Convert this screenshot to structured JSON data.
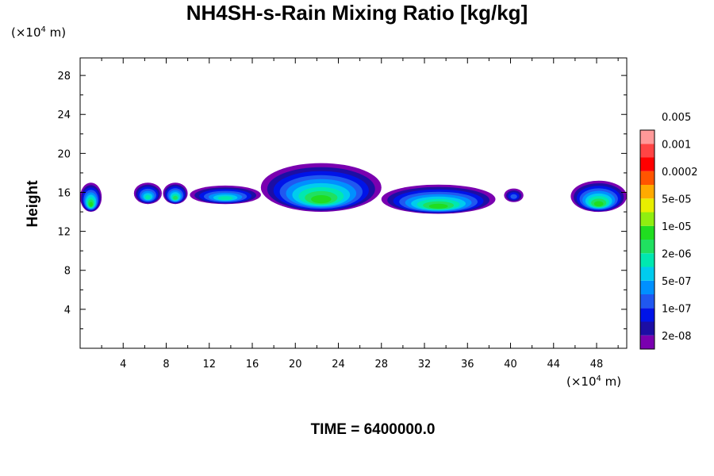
{
  "chart_data": {
    "type": "heatmap",
    "title": "NH4SH-s-Rain Mixing Ratio [kg/kg]",
    "xlabel": "",
    "ylabel": "Height",
    "x_unit_prefix": "(×10",
    "x_unit_exp": "4",
    "x_unit_suffix": " m)",
    "y_unit_prefix": "(×10",
    "y_unit_exp": "4",
    "y_unit_suffix": " m)",
    "xlim": [
      0,
      50.8
    ],
    "ylim": [
      0,
      29.8
    ],
    "xticks": [
      4,
      8,
      12,
      16,
      20,
      24,
      28,
      32,
      36,
      40,
      44,
      48
    ],
    "yticks": [
      4,
      8,
      12,
      16,
      20,
      24,
      28
    ],
    "x_minor_step": 2,
    "y_minor_step": 2,
    "colorbar": {
      "colors": [
        "#7a00b0",
        "#1c0ea4",
        "#0014e8",
        "#2058f0",
        "#0090ff",
        "#00ccee",
        "#00e8b0",
        "#20e060",
        "#20dd20",
        "#90ee10",
        "#e8ee00",
        "#ffaa00",
        "#ff5500",
        "#ff0000",
        "#ff4444",
        "#ff9999"
      ],
      "labels": [
        "2e-08",
        "1e-07",
        "5e-07",
        "2e-06",
        "1e-05",
        "5e-05",
        "0.0002",
        "0.001",
        "0.005"
      ]
    },
    "regions": [
      {
        "x": [
          0.0,
          2.0
        ],
        "y": [
          14.0,
          17.0
        ],
        "peak": 8
      },
      {
        "x": [
          5.0,
          7.6
        ],
        "y": [
          14.8,
          17.0
        ],
        "peak": 6
      },
      {
        "x": [
          7.7,
          10.0
        ],
        "y": [
          14.8,
          17.0
        ],
        "peak": 7
      },
      {
        "x": [
          10.2,
          16.8
        ],
        "y": [
          14.8,
          16.7
        ],
        "peak": 6
      },
      {
        "x": [
          16.8,
          28.0
        ],
        "y": [
          14.0,
          19.0
        ],
        "peak": 8
      },
      {
        "x": [
          28.0,
          38.6
        ],
        "y": [
          13.8,
          16.8
        ],
        "peak": 8
      },
      {
        "x": [
          39.4,
          41.2
        ],
        "y": [
          15.0,
          16.4
        ],
        "peak": 3
      },
      {
        "x": [
          45.6,
          50.8
        ],
        "y": [
          14.0,
          17.2
        ],
        "peak": 8
      }
    ]
  },
  "footer": {
    "time_label": "TIME = 6400000.0"
  }
}
